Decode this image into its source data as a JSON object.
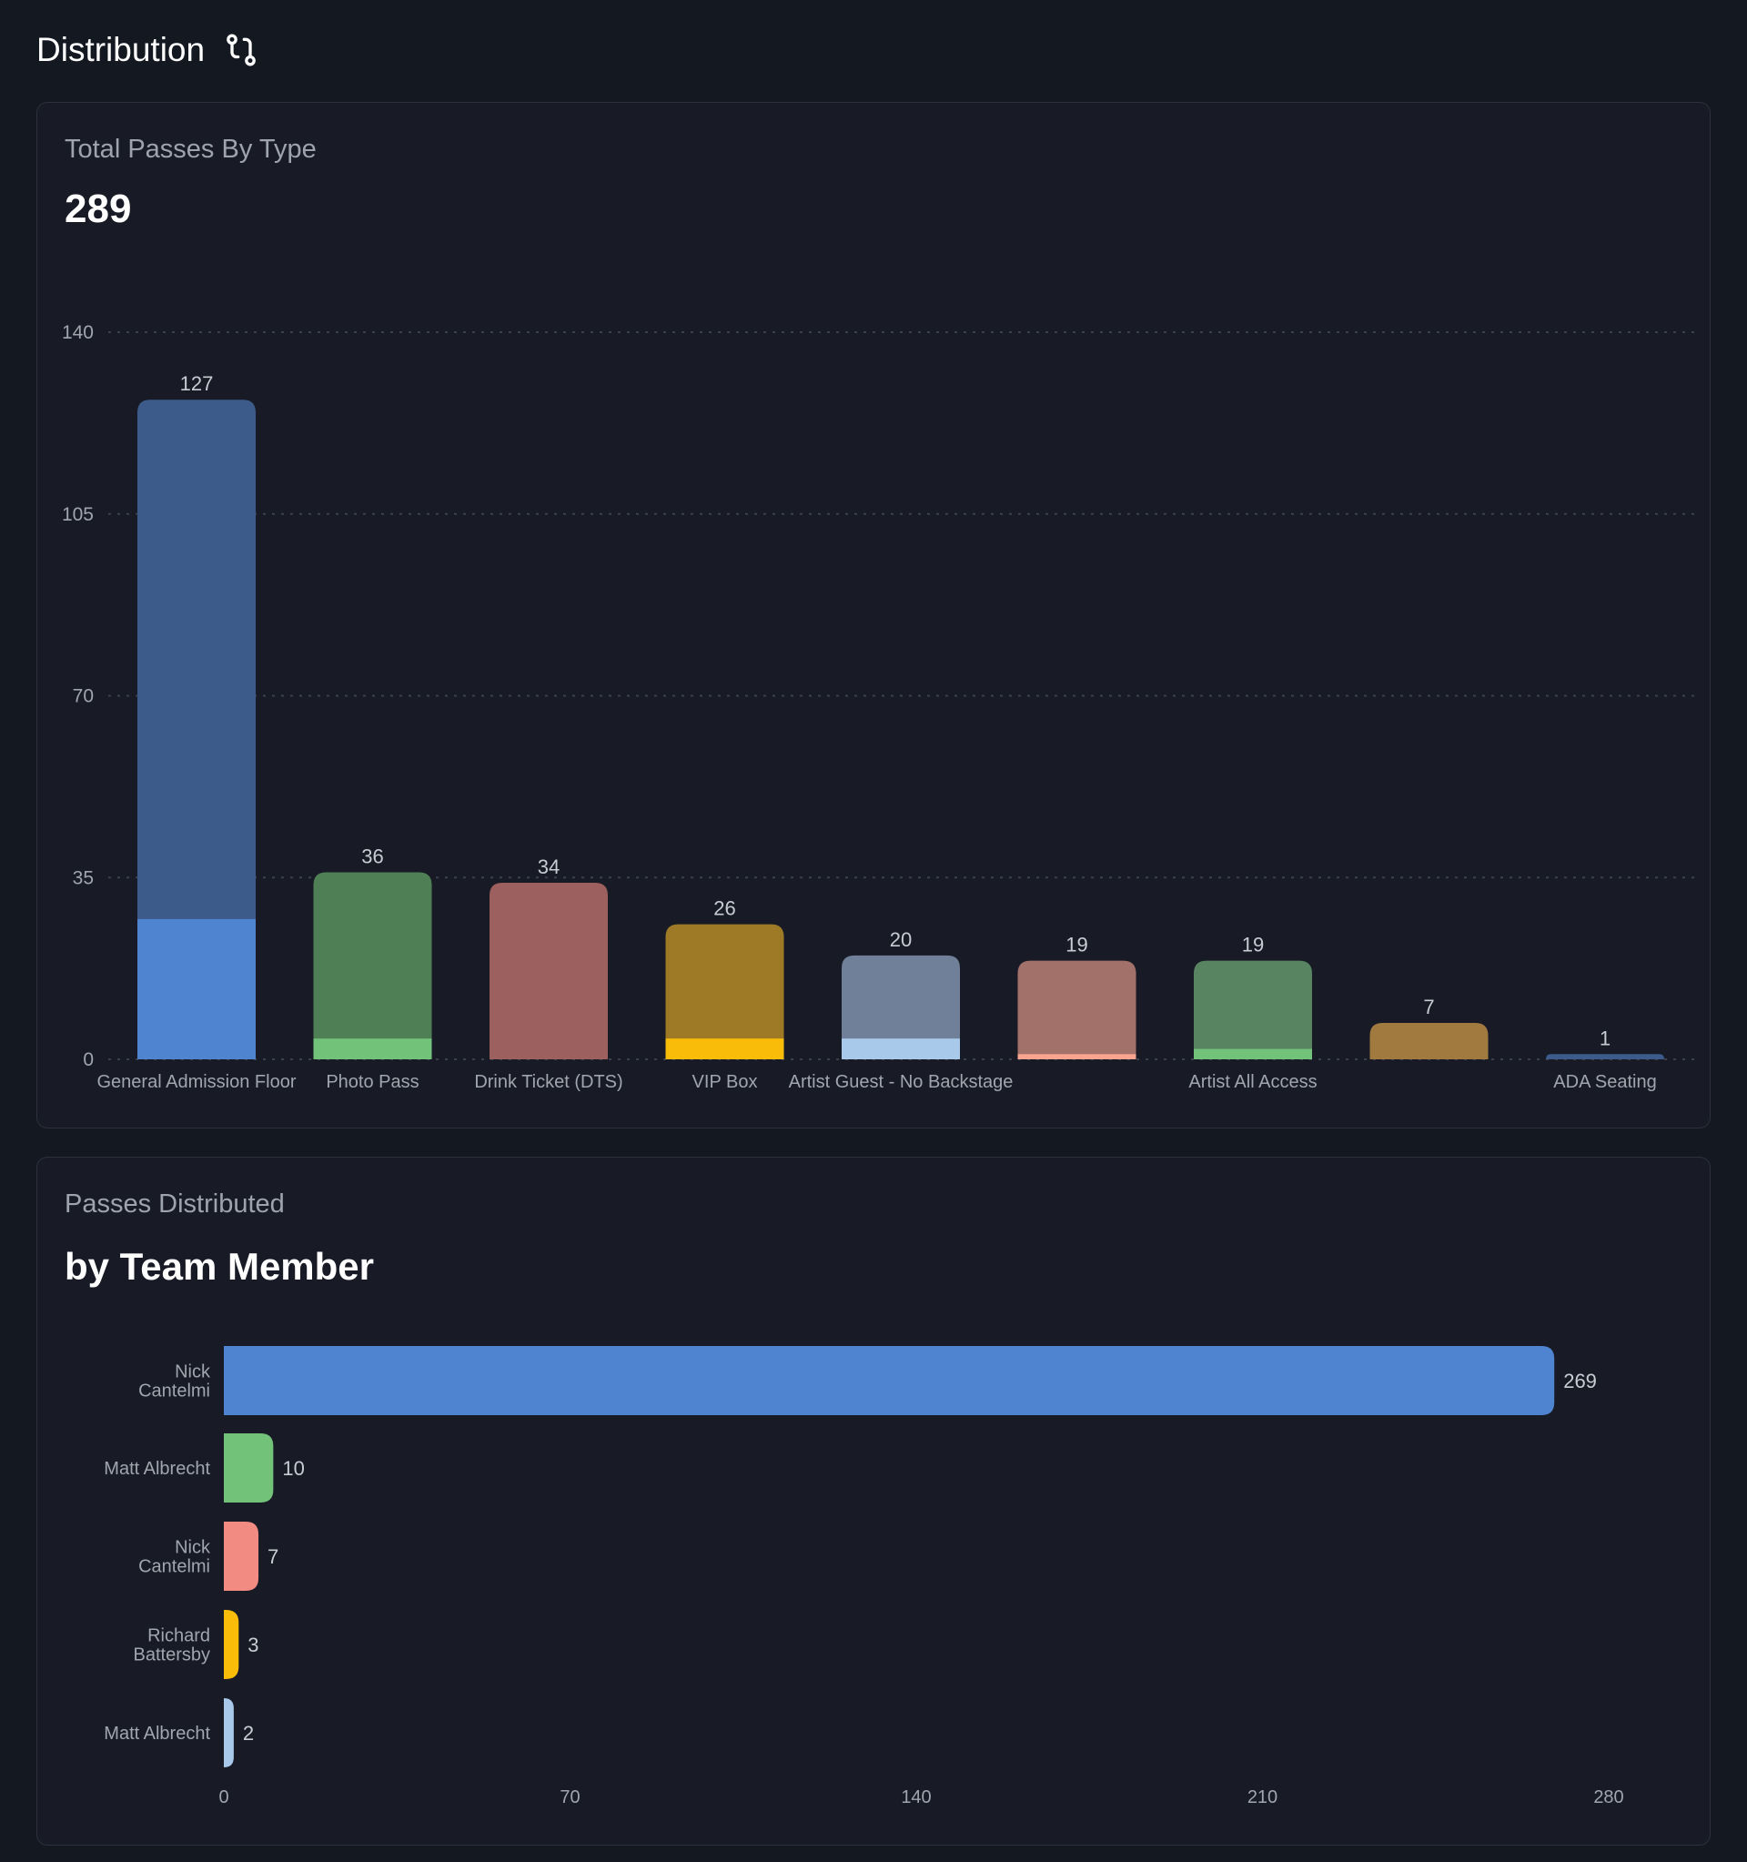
{
  "header": {
    "title": "Distribution",
    "icon": "git-pull-request-icon"
  },
  "chart_data": [
    {
      "type": "bar",
      "stacked": true,
      "subtitle": "Total Passes By Type",
      "title": "289",
      "categories": [
        "General Admission Floor",
        "Photo Pass",
        "Drink Ticket (DTS)",
        "VIP Box",
        "Artist Guest - No Backstage",
        "",
        "Artist All Access",
        "",
        "ADA Seating"
      ],
      "values": [
        127,
        36,
        34,
        26,
        20,
        19,
        19,
        7,
        1
      ],
      "distributed_values": [
        27,
        4,
        0,
        4,
        4,
        1,
        2,
        0,
        0
      ],
      "colors": [
        "#3c5a8a",
        "#4f7f55",
        "#9c605e",
        "#9f7a26",
        "#6f8098",
        "#a1716a",
        "#588462",
        "#a17a40",
        "#3c5a8a"
      ],
      "distributed_colors": [
        "#4f84d0",
        "#73c27a",
        "#9c605e",
        "#f9bc08",
        "#a8c9e9",
        "#f8a48f",
        "#73c27a",
        "#a17a40",
        "#3c5a8a"
      ],
      "yticks": [
        0,
        35,
        70,
        105,
        140
      ],
      "ylim": [
        0,
        140
      ],
      "grid": true
    },
    {
      "type": "bar",
      "orientation": "horizontal",
      "subtitle": "Passes Distributed",
      "title": "by Team Member",
      "categories": [
        [
          "Nick",
          "Cantelmi"
        ],
        [
          "Matt Albrecht"
        ],
        [
          "Nick",
          "Cantelmi"
        ],
        [
          "Richard",
          "Battersby"
        ],
        [
          "Matt Albrecht"
        ]
      ],
      "values": [
        269,
        10,
        7,
        3,
        2
      ],
      "colors": [
        "#4f84d0",
        "#73c27a",
        "#f28b82",
        "#f9bc08",
        "#a8c9e9"
      ],
      "xticks": [
        0,
        70,
        140,
        210,
        280
      ],
      "xlim": [
        0,
        280
      ],
      "grid": false
    }
  ]
}
